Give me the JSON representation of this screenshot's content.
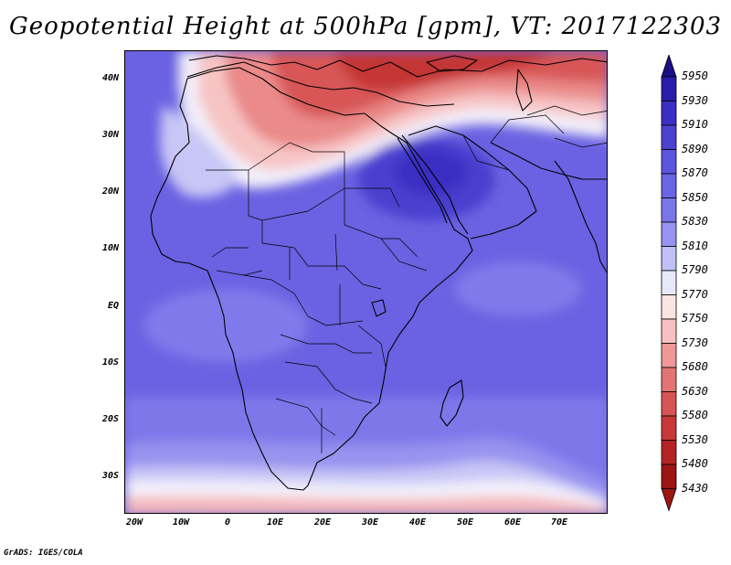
{
  "title": "Geopotential Height at 500hPa [gpm], VT: 2017122303",
  "credit": "GrADS: IGES/COLA",
  "lat_labels": [
    "40N",
    "30N",
    "20N",
    "10N",
    "EQ",
    "10S",
    "20S",
    "30S"
  ],
  "lon_labels": [
    "20W",
    "10W",
    "0",
    "10E",
    "20E",
    "30E",
    "40E",
    "50E",
    "60E",
    "70E"
  ],
  "colorbar": {
    "levels": [
      "5950",
      "5930",
      "5910",
      "5890",
      "5870",
      "5850",
      "5830",
      "5810",
      "5790",
      "5770",
      "5750",
      "5730",
      "5680",
      "5630",
      "5580",
      "5530",
      "5480",
      "5430"
    ],
    "colors": [
      "#1b0e87",
      "#2a1cab",
      "#3b2fc3",
      "#4c42d2",
      "#5c55dd",
      "#6a65e5",
      "#7a76ea",
      "#9893ef",
      "#c1c0f6",
      "#e8e8fb",
      "#fde4e4",
      "#f8c0c0",
      "#f09898",
      "#e47474",
      "#d75454",
      "#c83838",
      "#b52424",
      "#9c1414"
    ]
  },
  "chart_data": {
    "type": "heatmap",
    "title": "Geopotential Height at 500hPa [gpm], VT: 2017122303",
    "variable": "Geopotential Height",
    "level": "500hPa",
    "units": "gpm",
    "valid_time": "2017122303",
    "xlabel": "",
    "ylabel": "",
    "xlim": [
      -22,
      80
    ],
    "ylim": [
      -37,
      44
    ],
    "x_ticks": [
      "20W",
      "10W",
      "0",
      "10E",
      "20E",
      "30E",
      "40E",
      "50E",
      "60E",
      "70E"
    ],
    "y_ticks": [
      "40N",
      "30N",
      "20N",
      "10N",
      "EQ",
      "10S",
      "20S",
      "30S"
    ],
    "colorbar_levels": [
      5430,
      5480,
      5530,
      5580,
      5630,
      5680,
      5730,
      5750,
      5770,
      5790,
      5810,
      5830,
      5850,
      5870,
      5890,
      5910,
      5930,
      5950
    ]
  }
}
